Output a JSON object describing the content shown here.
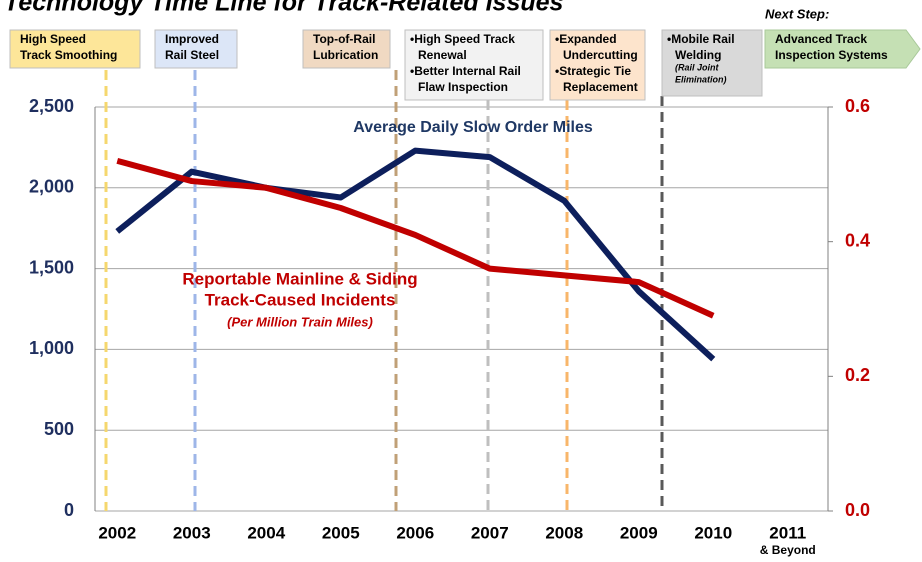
{
  "chart_data": {
    "type": "line",
    "title": "Technology Time Line for Track-Related Issues",
    "categories": [
      "2002",
      "2003",
      "2004",
      "2005",
      "2006",
      "2007",
      "2008",
      "2009",
      "2010",
      "2011"
    ],
    "category_note": "& Beyond",
    "series": [
      {
        "name": "Average Daily Slow Order Miles",
        "color": "#0d1f5c",
        "axis": "y",
        "values": [
          1730,
          2100,
          2000,
          1940,
          2230,
          2190,
          1920,
          1360,
          940,
          null
        ]
      },
      {
        "name": "Reportable Mainline & Siding",
        "name_lines": [
          "Track-Caused Incidents"
        ],
        "note": "(Per Million Train Miles)",
        "color": "#c00000",
        "axis": "y2",
        "values": [
          0.52,
          0.49,
          0.48,
          0.45,
          0.41,
          0.36,
          0.35,
          0.34,
          0.29,
          null
        ]
      }
    ],
    "ylim": [
      0,
      2500
    ],
    "yticks": [
      0,
      500,
      {
        "value": 1000,
        "label": "1,000"
      },
      {
        "value": 1500,
        "label": "1,500"
      },
      {
        "value": 2000,
        "label": "2,000"
      },
      {
        "value": 2500,
        "label": "2,500"
      }
    ],
    "y2lim": [
      0,
      0.6
    ],
    "y2ticks": [
      {
        "value": 0,
        "label": "0.0"
      },
      0.2,
      0.4,
      0.6
    ],
    "grid": true,
    "next_step_label": "Next Step:",
    "boxes": [
      {
        "lines": [
          "High Speed",
          "Track Smoothing"
        ],
        "color": "#fde699"
      },
      {
        "lines": [
          "Improved",
          "Rail Steel"
        ],
        "color": "#dce6f7"
      },
      {
        "lines": [
          "Top-of-Rail",
          "Lubrication"
        ],
        "color": "#f0d9c2"
      },
      {
        "lines": [
          "•High Speed Track",
          "Renewal",
          "•Better Internal Rail",
          "Flaw Inspection"
        ],
        "color": "#f2f2f2"
      },
      {
        "lines": [
          "•Expanded",
          "Undercutting",
          "•Strategic Tie",
          "Replacement"
        ],
        "color": "#fde4cc"
      },
      {
        "lines": [
          "•Mobile Rail",
          "Welding"
        ],
        "notes": [
          "(Rail Joint",
          "Elimination)"
        ],
        "color": "#d9d9d9"
      },
      {
        "lines": [
          "Advanced Track",
          "Inspection Systems"
        ],
        "color": "#c5e0b4"
      }
    ]
  }
}
